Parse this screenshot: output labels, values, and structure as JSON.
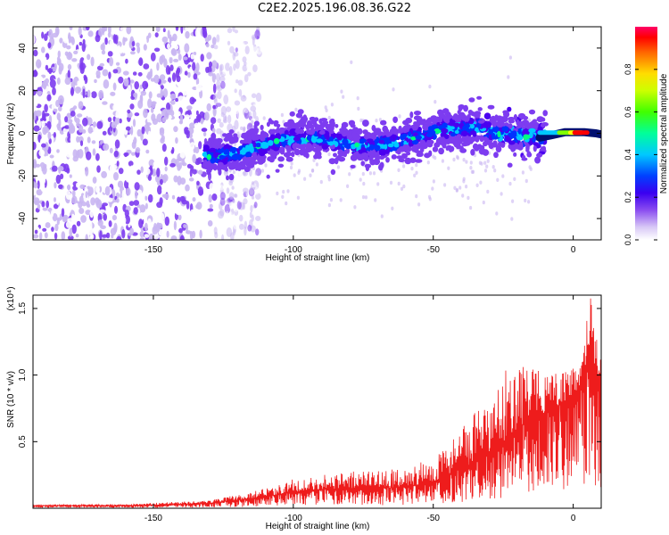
{
  "title": "C2E2.2025.196.08.36.G22",
  "chart_data": [
    {
      "type": "heatmap",
      "title": "C2E2.2025.196.08.36.G22",
      "xlabel": "Height of straight line (km)",
      "ylabel": "Frequency (Hz)",
      "xlim": [
        -193,
        10
      ],
      "ylim": [
        -50,
        50
      ],
      "x_ticks": [
        -150,
        -100,
        -50,
        0
      ],
      "y_ticks": [
        -40,
        -20,
        0,
        20,
        40
      ],
      "colorbar": {
        "label": "Normalized spectral amplitude",
        "range": [
          0,
          1
        ],
        "ticks": [
          0.0,
          0.2,
          0.4,
          0.6,
          0.8
        ],
        "tick_labels": [
          "0.0",
          "0.2",
          "0.4",
          "0.6",
          "0.8"
        ]
      },
      "features": [
        {
          "x_range": [
            -193,
            -122
          ],
          "y_range": [
            -50,
            50
          ],
          "amplitude": 0.15,
          "description": "diffuse noise"
        },
        {
          "x_range": [
            -132,
            -10
          ],
          "center_y": [
            -8,
            2
          ],
          "width_hz": 10,
          "amplitude": 0.35
        },
        {
          "x_range": [
            -10,
            10
          ],
          "center_y": [
            0,
            0
          ],
          "width_hz": 4,
          "amplitude": 1.0
        }
      ],
      "colors": [
        "#ffffff",
        "#c9b6f2",
        "#7d3cf0",
        "#4a00f0",
        "#0033ff",
        "#00c8ff",
        "#00ff80",
        "#80ff00",
        "#ffff00",
        "#ff9900",
        "#ff0000",
        "#ff0066"
      ]
    },
    {
      "type": "line",
      "xlabel": "Height of straight line (km)",
      "ylabel": "SNR (10 * v/v)",
      "y_scale_label": "(x10⁴)",
      "xlim": [
        -193,
        10
      ],
      "ylim": [
        0,
        1.6
      ],
      "x_ticks": [
        -150,
        -100,
        -50,
        0
      ],
      "y_ticks": [
        0.5,
        1.0,
        1.5
      ],
      "y_tick_labels": [
        "0.5",
        "1.0",
        "1.5"
      ],
      "series": [
        {
          "color": "#ee1c1c",
          "x": [
            -193,
            -180,
            -160,
            -140,
            -130,
            -120,
            -110,
            -100,
            -90,
            -80,
            -70,
            -60,
            -50,
            -45,
            -40,
            -35,
            -30,
            -25,
            -20,
            -15,
            -10,
            -5,
            0,
            3,
            6,
            8,
            10
          ],
          "y": [
            0.02,
            0.02,
            0.02,
            0.03,
            0.04,
            0.06,
            0.09,
            0.12,
            0.14,
            0.15,
            0.15,
            0.16,
            0.2,
            0.25,
            0.3,
            0.35,
            0.42,
            0.5,
            0.6,
            0.68,
            0.72,
            0.78,
            0.85,
            0.95,
            1.2,
            1.05,
            0.8
          ],
          "envelope": [
            0.02,
            0.03,
            0.03,
            0.05,
            0.06,
            0.1,
            0.15,
            0.22,
            0.25,
            0.28,
            0.28,
            0.3,
            0.38,
            0.5,
            0.62,
            0.72,
            0.8,
            1.0,
            1.2,
            1.08,
            1.0,
            1.02,
            1.05,
            1.1,
            1.6,
            1.45,
            1.4
          ]
        }
      ]
    }
  ]
}
